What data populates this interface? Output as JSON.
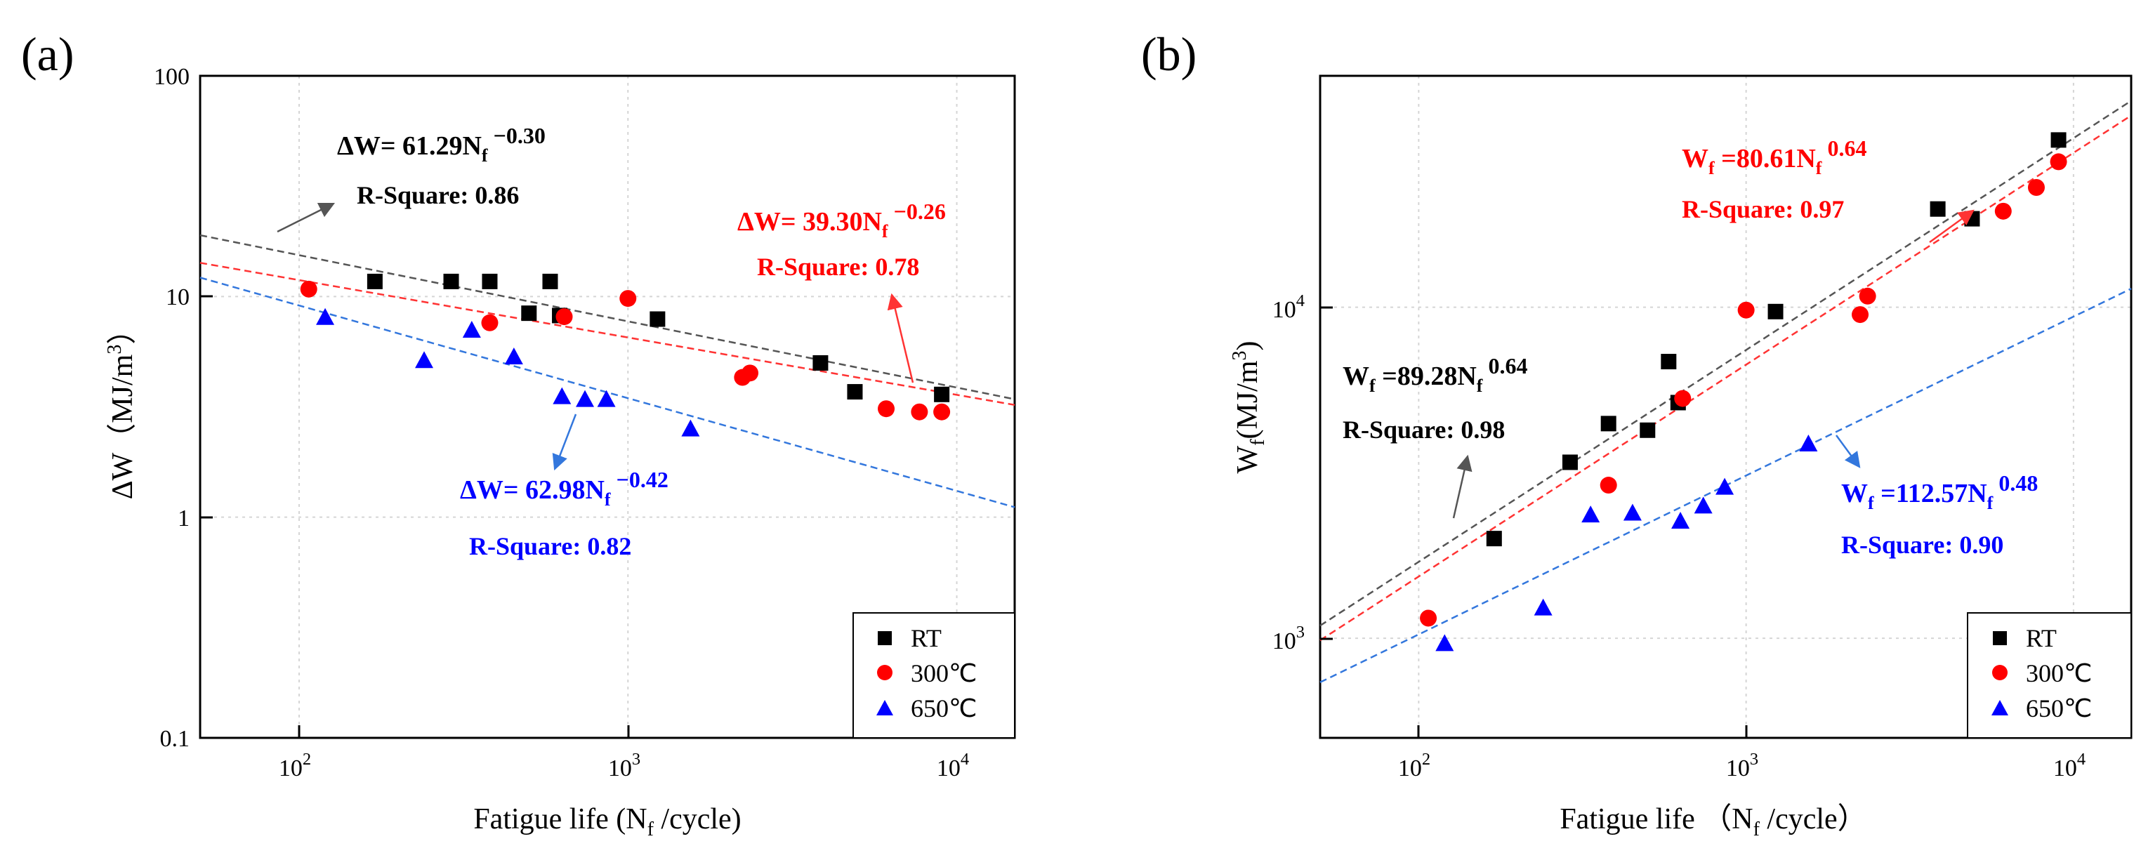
{
  "chart_data": [
    {
      "type": "scatter",
      "panel_label": "(a)",
      "title": "",
      "xlabel": "Fatigue life (N",
      "xlabel_sub": "f",
      "xlabel_end": " /cycle)",
      "ylabel": "ΔW（MJ/m",
      "ylabel_sup": "3",
      "ylabel_end": "）",
      "x_scale": "log",
      "y_scale": "log",
      "xlim": [
        50,
        15000
      ],
      "ylim": [
        0.1,
        100
      ],
      "x_ticks": [
        {
          "value": 100,
          "base": "10",
          "exp": "2"
        },
        {
          "value": 1000,
          "base": "10",
          "exp": "3"
        },
        {
          "value": 10000,
          "base": "10",
          "exp": "4"
        }
      ],
      "y_ticks": [
        {
          "value": 0.1,
          "label": "0.1"
        },
        {
          "value": 1,
          "label": "1"
        },
        {
          "value": 10,
          "label": "10"
        },
        {
          "value": 100,
          "label": "100"
        }
      ],
      "grid": true,
      "legend_position": "bottom-right",
      "series": [
        {
          "name": "RT",
          "color": "#000000",
          "marker": "square",
          "x": [
            170,
            290,
            380,
            500,
            580,
            620,
            1230,
            3850,
            4900,
            9000
          ],
          "y": [
            11.7,
            11.7,
            11.7,
            8.4,
            11.7,
            8.2,
            7.9,
            5.0,
            3.7,
            3.6
          ],
          "fit": {
            "a": 61.29,
            "b": -0.3,
            "color": "#555555"
          }
        },
        {
          "name": "300℃",
          "color": "#ff0000",
          "marker": "circle",
          "x": [
            107,
            380,
            640,
            1000,
            2230,
            2350,
            6100,
            7700,
            9000
          ],
          "y": [
            10.8,
            7.6,
            8.1,
            9.8,
            4.3,
            4.5,
            3.1,
            3.0,
            3.0
          ],
          "fit": {
            "a": 39.3,
            "b": -0.26,
            "color": "#ff3333"
          }
        },
        {
          "name": "650℃",
          "color": "#0000ff",
          "marker": "triangle",
          "x": [
            120,
            240,
            335,
            450,
            630,
            740,
            860,
            1550
          ],
          "y": [
            8.0,
            5.1,
            7.0,
            5.3,
            3.5,
            3.4,
            3.4,
            2.5
          ],
          "fit": {
            "a": 62.98,
            "b": -0.42,
            "color": "#3377dd"
          }
        }
      ],
      "annotations": [
        {
          "prefix": "ΔW= 61.29N",
          "sub": "f",
          "sup": " −0.30",
          "r2": "R-Square: 0.86",
          "color": "#000000"
        },
        {
          "prefix": "ΔW= 39.30N",
          "sub": "f",
          "sup": " −0.26",
          "r2": "R-Square: 0.78",
          "color": "#ff0000"
        },
        {
          "prefix": "ΔW= 62.98N",
          "sub": "f",
          "sup": " −0.42",
          "r2": "R-Square: 0.82",
          "color": "#0000ff"
        }
      ]
    },
    {
      "type": "scatter",
      "panel_label": "(b)",
      "title": "",
      "xlabel": "Fatigue life （N",
      "xlabel_sub": "f",
      "xlabel_end": " /cycle）",
      "ylabel": "W",
      "ylabel_sub": "f",
      "ylabel_mid": "(MJ/m",
      "ylabel_sup": "3",
      "ylabel_end": ")",
      "x_scale": "log",
      "y_scale": "log",
      "xlim": [
        50,
        15000
      ],
      "ylim": [
        500,
        50000
      ],
      "x_ticks": [
        {
          "value": 100,
          "base": "10",
          "exp": "2"
        },
        {
          "value": 1000,
          "base": "10",
          "exp": "3"
        },
        {
          "value": 10000,
          "base": "10",
          "exp": "4"
        }
      ],
      "y_ticks": [
        {
          "value": 1000,
          "base": "10",
          "exp": "3"
        },
        {
          "value": 10000,
          "base": "10",
          "exp": "4"
        }
      ],
      "grid": true,
      "legend_position": "bottom-right",
      "series": [
        {
          "name": "RT",
          "color": "#000000",
          "marker": "square",
          "x": [
            170,
            290,
            380,
            500,
            580,
            620,
            1230,
            3850,
            4900,
            9000
          ],
          "y": [
            2000,
            3400,
            4450,
            4250,
            6850,
            5150,
            9700,
            19800,
            18500,
            32000
          ],
          "fit": {
            "a": 89.28,
            "b": 0.64,
            "color": "#555555"
          }
        },
        {
          "name": "300℃",
          "color": "#ff0000",
          "marker": "circle",
          "x": [
            107,
            380,
            640,
            1000,
            2230,
            2350,
            6100,
            7700,
            9000
          ],
          "y": [
            1150,
            2900,
            5300,
            9800,
            9500,
            10800,
            19500,
            23000,
            27500
          ],
          "fit": {
            "a": 80.61,
            "b": 0.64,
            "color": "#ff3333"
          }
        },
        {
          "name": "650℃",
          "color": "#0000ff",
          "marker": "triangle",
          "x": [
            120,
            240,
            335,
            450,
            630,
            740,
            860,
            1550
          ],
          "y": [
            960,
            1230,
            2350,
            2380,
            2250,
            2500,
            2850,
            3850
          ],
          "fit": {
            "a": 112.57,
            "b": 0.48,
            "color": "#3377dd"
          }
        }
      ],
      "annotations": [
        {
          "prefix": "W",
          "sub": "f",
          "mid": " =89.28N",
          "sub2": "f",
          "sup": " 0.64",
          "r2": "R-Square: 0.98",
          "color": "#000000"
        },
        {
          "prefix": "W",
          "sub": "f",
          "mid": " =80.61N",
          "sub2": "f",
          "sup": " 0.64",
          "r2": "R-Square: 0.97",
          "color": "#ff0000"
        },
        {
          "prefix": "W",
          "sub": "f",
          "mid": " =112.57N",
          "sub2": "f",
          "sup": " 0.48",
          "r2": "R-Square: 0.90",
          "color": "#0000ff"
        }
      ]
    }
  ]
}
